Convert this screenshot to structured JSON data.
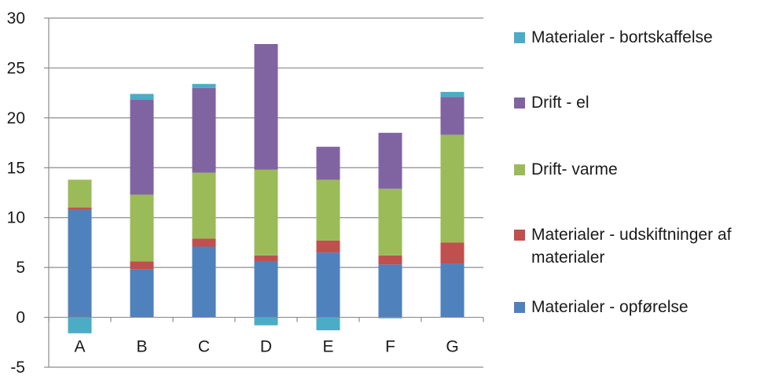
{
  "chart_data": {
    "type": "bar",
    "stacked": true,
    "categories": [
      "A",
      "B",
      "C",
      "D",
      "E",
      "F",
      "G"
    ],
    "series": [
      {
        "name": "Materialer - opførelse",
        "color": "#4f81bd",
        "values": [
          10.8,
          4.8,
          7.1,
          5.6,
          6.5,
          5.3,
          5.4
        ]
      },
      {
        "name": "Materialer - udskiftninger af materialer",
        "color": "#c0504d",
        "values": [
          0.2,
          0.8,
          0.8,
          0.6,
          1.2,
          0.9,
          2.1
        ]
      },
      {
        "name": "Drift- varme",
        "color": "#9bbb59",
        "values": [
          2.8,
          6.7,
          6.6,
          8.6,
          6.1,
          6.7,
          10.8
        ]
      },
      {
        "name": "Drift - el",
        "color": "#8064a2",
        "values": [
          0,
          9.5,
          8.5,
          12.6,
          3.3,
          5.6,
          3.8
        ]
      },
      {
        "name": "Materialer - bortskaffelse",
        "color": "#4bacc6",
        "values": [
          -1.6,
          0.6,
          0.4,
          -0.8,
          -1.3,
          -0.1,
          0.5
        ]
      }
    ],
    "legend_order": [
      4,
      3,
      2,
      1,
      0
    ],
    "ylim": [
      -5,
      30
    ],
    "yticks": [
      -5,
      0,
      5,
      10,
      15,
      20,
      25,
      30
    ],
    "grid": true,
    "legend_position": "right",
    "title": "",
    "xlabel": "",
    "ylabel": ""
  }
}
